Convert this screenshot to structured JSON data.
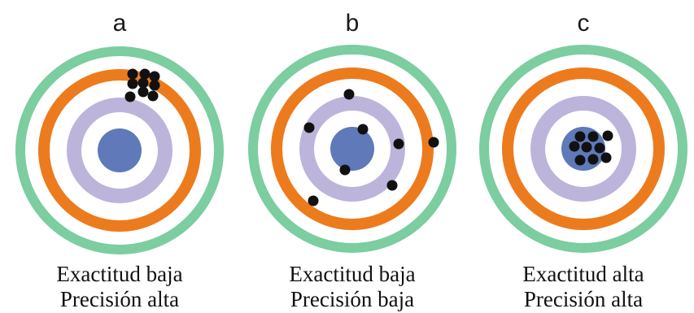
{
  "colors": {
    "outer_ring": "#7ccda0",
    "middle_ring": "#ec7b1e",
    "inner_ring": "#bcb4da",
    "bullseye": "#5f79b9",
    "shot": "#111111"
  },
  "targets": [
    {
      "letter": "a",
      "accuracy": "Exactitud baja",
      "precision": "Precisión alta"
    },
    {
      "letter": "b",
      "accuracy": "Exactitud baja",
      "precision": "Precisión baja"
    },
    {
      "letter": "c",
      "accuracy": "Exactitud alta",
      "precision": "Precisión alta"
    }
  ]
}
